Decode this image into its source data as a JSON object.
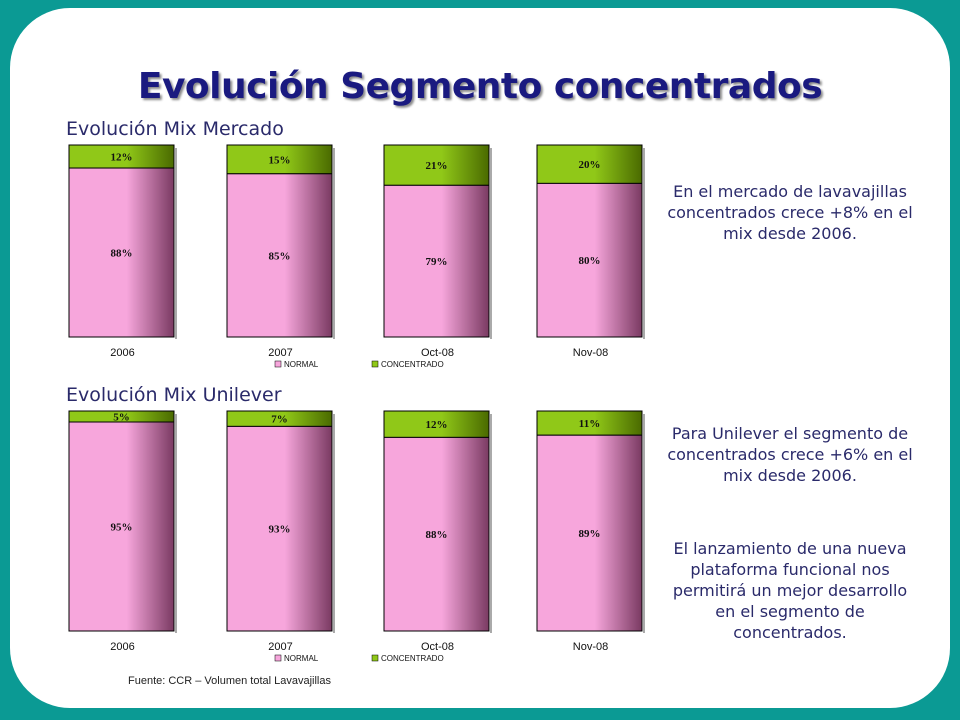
{
  "title": "Evolución Segmento concentrados",
  "colors": {
    "normal": "#f7a6dc",
    "concentrado": "#90c818",
    "background": "#0b9a94"
  },
  "chart_data": [
    {
      "type": "bar",
      "stacked": true,
      "title": "Evolución Mix Mercado",
      "categories": [
        "2006",
        "2007",
        "Oct-08",
        "Nov-08"
      ],
      "series": [
        {
          "name": "NORMAL",
          "values": [
            88,
            85,
            79,
            80
          ],
          "labels": [
            "88%",
            "85%",
            "79%",
            "80%"
          ]
        },
        {
          "name": "CONCENTRADO",
          "values": [
            12,
            15,
            21,
            20
          ],
          "labels": [
            "12%",
            "15%",
            "21%",
            "20%"
          ]
        }
      ],
      "ylim": [
        0,
        100
      ],
      "legend": "bottom"
    },
    {
      "type": "bar",
      "stacked": true,
      "title": "Evolución Mix Unilever",
      "categories": [
        "2006",
        "2007",
        "Oct-08",
        "Nov-08"
      ],
      "series": [
        {
          "name": "NORMAL",
          "values": [
            95,
            93,
            88,
            89
          ],
          "labels": [
            "95%",
            "93%",
            "88%",
            "89%"
          ]
        },
        {
          "name": "CONCENTRADO",
          "values": [
            5,
            7,
            12,
            11
          ],
          "labels": [
            "5%",
            "7%",
            "12%",
            "11%"
          ]
        }
      ],
      "ylim": [
        0,
        100
      ],
      "legend": "bottom"
    }
  ],
  "notes": {
    "mercado": "En el mercado de lavavajillas concentrados crece +8% en el mix desde 2006.",
    "unilever": "Para Unilever el segmento de concentrados crece +6% en el mix desde 2006.",
    "lanzamiento": "El lanzamiento de una nueva plataforma funcional nos permitirá un mejor desarrollo en el segmento de concentrados."
  },
  "source": "Fuente: CCR – Volumen total Lavavajillas"
}
